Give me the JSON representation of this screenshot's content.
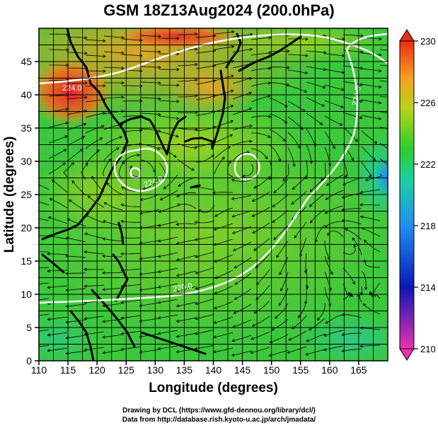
{
  "title": "GSM 18Z13Aug2024 (200.0hPa)",
  "map": {
    "xaxis": {
      "label": "Longitude (degrees)",
      "range": [
        110,
        170
      ],
      "ticks": [
        "110",
        "115",
        "120",
        "125",
        "130",
        "135",
        "140",
        "145",
        "150",
        "155",
        "160",
        "165"
      ]
    },
    "yaxis": {
      "label": "Latitude  (degrees)",
      "range": [
        0,
        50
      ],
      "ticks": [
        "0",
        "5",
        "10",
        "15",
        "20",
        "25",
        "30",
        "35",
        "40",
        "45"
      ]
    },
    "grid": true,
    "field": "temperature with streamlines and white contours",
    "contour_labels": [
      "224.0",
      "224.0",
      "224.0",
      "220.0"
    ]
  },
  "colorbar": {
    "ticks": [
      "210",
      "214",
      "218",
      "222",
      "226",
      "230"
    ],
    "range": [
      210,
      230
    ],
    "colors": [
      "#e832b0",
      "#0a18b5",
      "#1f8ff0",
      "#1ed0a0",
      "#2ecc2e",
      "#b8d418",
      "#f5a023",
      "#e82e16"
    ]
  },
  "credits": {
    "line1": "Drawing by DCL (https://www.gfd-dennou.org/library/dcl/)",
    "line2": "Data from http://database.rish.kyoto-u.ac.jp/arch/jmadata/"
  }
}
